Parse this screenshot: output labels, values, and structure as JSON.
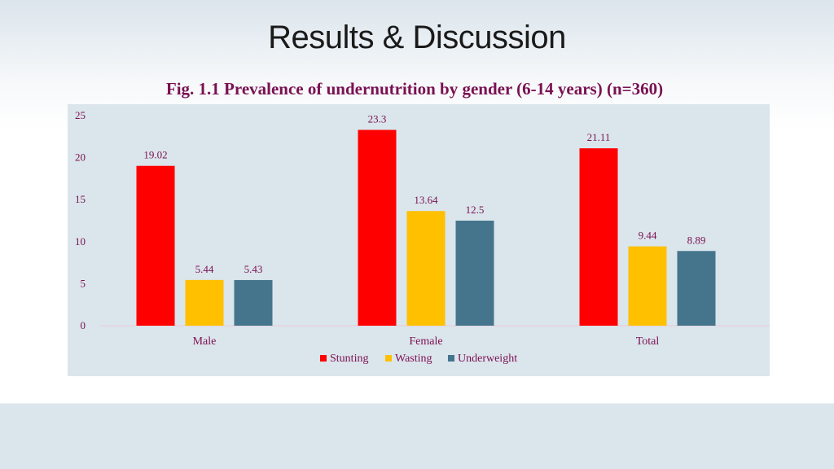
{
  "slide": {
    "title": "Results & Discussion",
    "caption": "Fig. 1.1 Prevalence of undernutrition by gender (6-14 years) (n=360)"
  },
  "chart_data": {
    "type": "bar",
    "title": "Fig. 1.1 Prevalence of undernutrition by gender (6-14 years) (n=360)",
    "xlabel": "",
    "ylabel": "",
    "categories": [
      "Male",
      "Female",
      "Total"
    ],
    "series": [
      {
        "name": "Stunting",
        "color": "#ff0000",
        "values": [
          19.02,
          23.3,
          21.11
        ],
        "labels": [
          "19.02",
          "23.3",
          "21.11"
        ]
      },
      {
        "name": "Wasting",
        "color": "#ffc000",
        "values": [
          5.44,
          13.64,
          9.44
        ],
        "labels": [
          "5.44",
          "13.64",
          "9.44"
        ]
      },
      {
        "name": "Underweight",
        "color": "#44758c",
        "values": [
          5.43,
          12.5,
          8.89
        ],
        "labels": [
          "5.43",
          "12.5",
          "8.89"
        ]
      }
    ],
    "ylim": [
      0,
      25
    ],
    "yticks": [
      "0",
      "5",
      "10",
      "15",
      "20",
      "25"
    ],
    "grid": false,
    "legend": "bottom-center"
  }
}
